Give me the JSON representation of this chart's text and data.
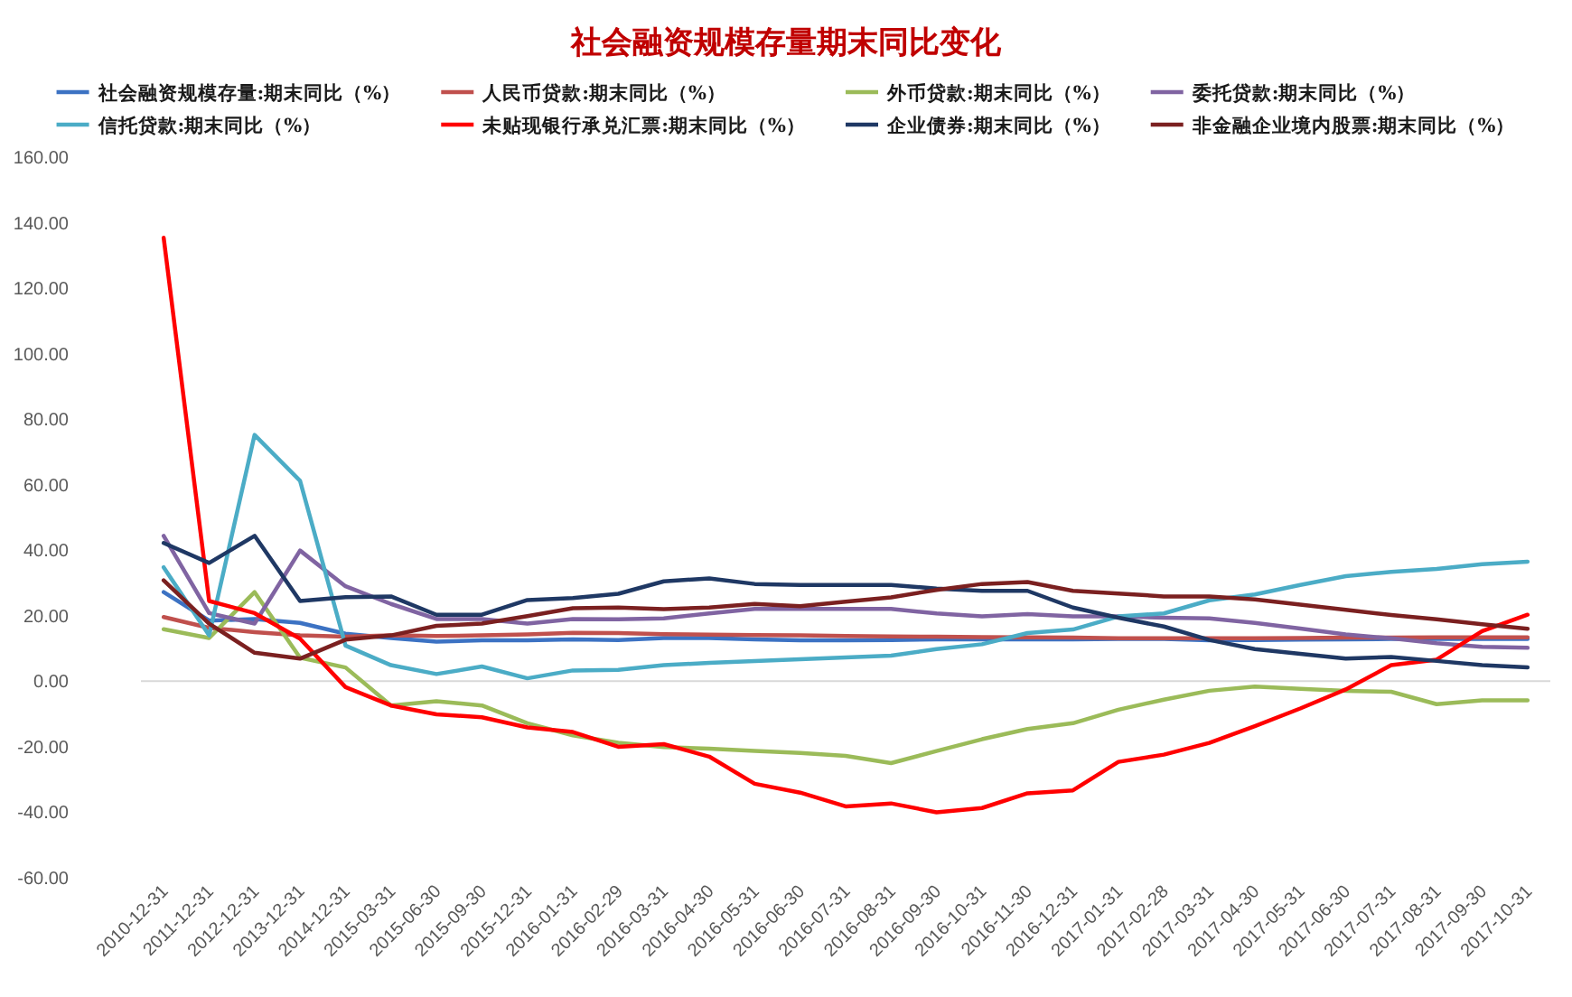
{
  "chart_data": {
    "type": "line",
    "title": "社会融资规模存量期末同比变化",
    "categories": [
      "2010-12-31",
      "2011-12-31",
      "2012-12-31",
      "2013-12-31",
      "2014-12-31",
      "2015-03-31",
      "2015-06-30",
      "2015-09-30",
      "2015-12-31",
      "2016-01-31",
      "2016-02-29",
      "2016-03-31",
      "2016-04-30",
      "2016-05-31",
      "2016-06-30",
      "2016-07-31",
      "2016-08-31",
      "2016-09-30",
      "2016-10-31",
      "2016-11-30",
      "2016-12-31",
      "2017-01-31",
      "2017-02-28",
      "2017-03-31",
      "2017-04-30",
      "2017-05-31",
      "2017-06-30",
      "2017-07-31",
      "2017-08-31",
      "2017-09-30",
      "2017-10-31"
    ],
    "series": [
      {
        "name": "社会融资规模存量:期末同比（%）",
        "color": "#3c72c3",
        "values": [
          27.2,
          18.5,
          19.0,
          17.8,
          14.5,
          13.2,
          12.1,
          12.5,
          12.5,
          12.8,
          12.6,
          13.2,
          13.2,
          12.8,
          12.5,
          12.5,
          12.6,
          12.8,
          12.8,
          12.8,
          12.8,
          12.9,
          12.9,
          12.5,
          12.6,
          12.7,
          12.8,
          12.9,
          12.9,
          12.9,
          12.9
        ]
      },
      {
        "name": "人民币贷款:期末同比（%）",
        "color": "#c0504d",
        "values": [
          19.6,
          16.3,
          15.0,
          14.0,
          13.6,
          14.0,
          13.8,
          14.0,
          14.3,
          14.8,
          14.7,
          14.4,
          14.2,
          14.1,
          14.0,
          13.8,
          13.7,
          13.6,
          13.5,
          13.4,
          13.3,
          13.1,
          13.1,
          13.1,
          13.1,
          13.2,
          13.3,
          13.3,
          13.4,
          13.4,
          13.4
        ]
      },
      {
        "name": "外币贷款:期末同比（%）",
        "color": "#9bbb59",
        "values": [
          15.9,
          13.2,
          27.2,
          7.2,
          4.2,
          -7.4,
          -6.1,
          -7.4,
          -12.8,
          -16.5,
          -18.8,
          -20.1,
          -20.6,
          -21.3,
          -21.9,
          -22.8,
          -25.0,
          -21.3,
          -17.7,
          -14.6,
          -12.8,
          -8.7,
          -5.6,
          -2.9,
          -1.6,
          -2.3,
          -2.9,
          -3.2,
          -7.0,
          -5.8,
          -5.8
        ]
      },
      {
        "name": "委托贷款:期末同比（%）",
        "color": "#8064a2",
        "values": [
          44.4,
          20.8,
          17.6,
          39.9,
          29.0,
          23.6,
          19.0,
          19.0,
          17.6,
          19.0,
          18.9,
          19.2,
          20.7,
          22.1,
          22.1,
          22.1,
          22.1,
          20.7,
          19.8,
          20.5,
          19.8,
          19.8,
          19.4,
          19.2,
          17.8,
          16.1,
          14.3,
          13.1,
          11.6,
          10.5,
          10.2
        ]
      },
      {
        "name": "信托贷款:期末同比（%）",
        "color": "#4bacc6",
        "values": [
          34.8,
          14.0,
          75.2,
          61.2,
          10.9,
          4.9,
          2.2,
          4.5,
          0.9,
          3.3,
          3.5,
          4.9,
          5.6,
          6.2,
          6.7,
          7.3,
          7.8,
          9.8,
          11.3,
          14.7,
          15.8,
          19.8,
          20.7,
          24.7,
          26.5,
          29.4,
          32.1,
          33.4,
          34.3,
          35.7,
          36.5
        ]
      },
      {
        "name": "未贴现银行承兑汇票:期末同比（%）",
        "color": "#ff0000",
        "values": [
          135.4,
          24.5,
          20.8,
          13.0,
          -1.8,
          -7.4,
          -10.1,
          -11.0,
          -14.1,
          -15.5,
          -20.0,
          -19.2,
          -23.0,
          -31.3,
          -34.0,
          -38.2,
          -37.3,
          -40.0,
          -38.7,
          -34.2,
          -33.3,
          -24.6,
          -22.4,
          -18.8,
          -13.7,
          -8.3,
          -2.5,
          4.9,
          6.6,
          15.3,
          20.3
        ]
      },
      {
        "name": "企业债券:期末同比（%）",
        "color": "#1f3864",
        "values": [
          42.2,
          36.1,
          44.4,
          24.5,
          25.7,
          25.9,
          20.3,
          20.3,
          24.8,
          25.4,
          26.7,
          30.5,
          31.4,
          29.7,
          29.4,
          29.4,
          29.4,
          28.3,
          27.6,
          27.6,
          22.5,
          19.4,
          16.7,
          12.6,
          9.8,
          8.4,
          6.9,
          7.4,
          6.2,
          4.9,
          4.2
        ]
      },
      {
        "name": "非金融企业境内股票:期末同比（%）",
        "color": "#7b2020",
        "values": [
          30.8,
          17.6,
          8.7,
          6.9,
          12.7,
          14.0,
          16.9,
          17.6,
          19.9,
          22.3,
          22.5,
          22.0,
          22.5,
          23.6,
          22.9,
          24.3,
          25.6,
          27.9,
          29.7,
          30.3,
          27.6,
          26.8,
          25.9,
          25.9,
          25.0,
          23.4,
          21.8,
          20.2,
          18.9,
          17.4,
          16.0
        ]
      }
    ],
    "ylim": [
      -60,
      160
    ],
    "yticks": [
      {
        "value": -60,
        "label": "-60.00"
      },
      {
        "value": -40,
        "label": "-40.00"
      },
      {
        "value": -20,
        "label": "-20.00"
      },
      {
        "value": 0,
        "label": "0.00"
      },
      {
        "value": 20,
        "label": "20.00"
      },
      {
        "value": 40,
        "label": "40.00"
      },
      {
        "value": 60,
        "label": "60.00"
      },
      {
        "value": 80,
        "label": "80.00"
      },
      {
        "value": 100,
        "label": "100.00"
      },
      {
        "value": 120,
        "label": "120.00"
      },
      {
        "value": 140,
        "label": "140.00"
      },
      {
        "value": 160,
        "label": "160.00"
      }
    ],
    "legend": "top"
  }
}
